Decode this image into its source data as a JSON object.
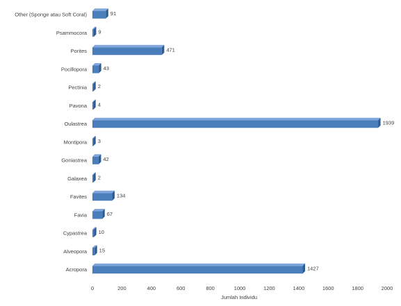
{
  "chart_data": {
    "type": "bar",
    "orientation": "horizontal",
    "style": "3d",
    "bar_color": "#4a7ebb",
    "categories": [
      "Other (Sponge atau Soft Coral)",
      "Psammocora",
      "Porites",
      "Pocillopora",
      "Pectinia",
      "Pavona",
      "Oulastrea",
      "Montipora",
      "Goniastrea",
      "Galaxea",
      "Favites",
      "Favia",
      "Cypastrea",
      "Alveopora",
      "Acropora"
    ],
    "values": [
      91,
      9,
      471,
      43,
      2,
      4,
      1939,
      3,
      42,
      2,
      134,
      67,
      10,
      15,
      1427
    ],
    "xlabel": "Jumlah Individu",
    "ylabel": "",
    "xlim": [
      0,
      2000
    ],
    "xticks": [
      0,
      200,
      400,
      600,
      800,
      1000,
      1200,
      1400,
      1600,
      1800,
      2000
    ],
    "grid": false,
    "legend": "none"
  }
}
